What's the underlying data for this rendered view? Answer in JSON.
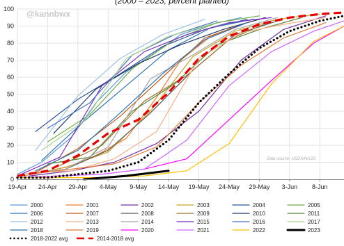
{
  "chart_data": {
    "type": "line",
    "title": "",
    "subtitle": "(2000 – 2023, percent planted)",
    "watermark": "@kannbwx",
    "source": "Data source: USDA/NASS",
    "xlabel": "",
    "ylabel": "",
    "x_ticks": [
      "19-Apr",
      "24-Apr",
      "29-Apr",
      "4-May",
      "9-May",
      "14-May",
      "19-May",
      "24-May",
      "29-May",
      "3-Jun",
      "8-Jun"
    ],
    "y_ticks": [
      "0",
      "10",
      "20",
      "30",
      "40",
      "50",
      "60",
      "70",
      "80",
      "90",
      "100"
    ],
    "xlim": [
      "19-Apr",
      "12-Jun"
    ],
    "ylim": [
      0,
      100
    ],
    "grid": true,
    "legend_position": "bottom",
    "series": [
      {
        "name": "2000",
        "color": "#5b9bd5",
        "style": "solid",
        "points": [
          [
            "19-Apr",
            3
          ],
          [
            "23-Apr",
            10
          ],
          [
            "28-Apr",
            25
          ],
          [
            "2-May",
            45
          ],
          [
            "7-May",
            63
          ],
          [
            "12-May",
            75
          ],
          [
            "16-May",
            85
          ],
          [
            "21-May",
            91
          ],
          [
            "26-May",
            95
          ]
        ]
      },
      {
        "name": "2001",
        "color": "#ed7d31",
        "style": "solid",
        "points": [
          [
            "23-Apr",
            4
          ],
          [
            "28-Apr",
            8
          ],
          [
            "2-May",
            14
          ],
          [
            "7-May",
            24
          ],
          [
            "12-May",
            48
          ],
          [
            "16-May",
            70
          ],
          [
            "21-May",
            84
          ],
          [
            "26-May",
            91
          ],
          [
            "30-May",
            95
          ]
        ]
      },
      {
        "name": "2002",
        "color": "#7030a0",
        "style": "solid",
        "points": [
          [
            "21-Apr",
            2
          ],
          [
            "28-Apr",
            5
          ],
          [
            "5-May",
            10
          ],
          [
            "12-May",
            21
          ],
          [
            "19-May",
            40
          ],
          [
            "26-May",
            70
          ],
          [
            "2-Jun",
            88
          ],
          [
            "9-Jun",
            96
          ]
        ]
      },
      {
        "name": "2003",
        "color": "#c9a227",
        "style": "solid",
        "points": [
          [
            "20-Apr",
            2
          ],
          [
            "27-Apr",
            7
          ],
          [
            "4-May",
            16
          ],
          [
            "11-May",
            40
          ],
          [
            "18-May",
            72
          ],
          [
            "25-May",
            87
          ],
          [
            "1-Jun",
            94
          ],
          [
            "8-Jun",
            97
          ]
        ]
      },
      {
        "name": "2004",
        "color": "#2e5597",
        "style": "solid",
        "points": [
          [
            "22-Apr",
            28
          ],
          [
            "29-Apr",
            47
          ],
          [
            "6-May",
            62
          ],
          [
            "13-May",
            78
          ],
          [
            "20-May",
            88
          ],
          [
            "27-May",
            94
          ]
        ]
      },
      {
        "name": "2005",
        "color": "#70ad47",
        "style": "solid",
        "points": [
          [
            "24-Apr",
            22
          ],
          [
            "1-May",
            38
          ],
          [
            "8-May",
            65
          ],
          [
            "15-May",
            82
          ],
          [
            "22-May",
            92
          ],
          [
            "29-May",
            96
          ]
        ]
      },
      {
        "name": "2006",
        "color": "#2f75b5",
        "style": "solid",
        "points": [
          [
            "23-Apr",
            11
          ],
          [
            "30-Apr",
            34
          ],
          [
            "7-May",
            55
          ],
          [
            "14-May",
            76
          ],
          [
            "21-May",
            89
          ],
          [
            "28-May",
            94
          ]
        ]
      },
      {
        "name": "2007",
        "color": "#c55a11",
        "style": "solid",
        "points": [
          [
            "22-Apr",
            4
          ],
          [
            "29-Apr",
            18
          ],
          [
            "6-May",
            37
          ],
          [
            "13-May",
            60
          ],
          [
            "20-May",
            83
          ],
          [
            "27-May",
            92
          ]
        ]
      },
      {
        "name": "2008",
        "color": "#595959",
        "style": "solid",
        "points": [
          [
            "27-Apr",
            6
          ],
          [
            "4-May",
            17
          ],
          [
            "11-May",
            39
          ],
          [
            "18-May",
            64
          ],
          [
            "25-May",
            85
          ],
          [
            "1-Jun",
            93
          ]
        ]
      },
      {
        "name": "2009",
        "color": "#a0722c",
        "style": "solid",
        "points": [
          [
            "26-Apr",
            8
          ],
          [
            "3-May",
            20
          ],
          [
            "10-May",
            46
          ],
          [
            "17-May",
            61
          ],
          [
            "24-May",
            82
          ],
          [
            "31-May",
            93
          ]
        ]
      },
      {
        "name": "2010",
        "color": "#1f3864",
        "style": "solid",
        "points": [
          [
            "25-Apr",
            27
          ],
          [
            "2-May",
            53
          ],
          [
            "9-May",
            68
          ],
          [
            "16-May",
            79
          ],
          [
            "23-May",
            88
          ],
          [
            "30-May",
            95
          ]
        ]
      },
      {
        "name": "2011",
        "color": "#548235",
        "style": "solid",
        "points": [
          [
            "24-Apr",
            9
          ],
          [
            "1-May",
            13
          ],
          [
            "8-May",
            40
          ],
          [
            "15-May",
            56
          ],
          [
            "22-May",
            79
          ],
          [
            "29-May",
            88
          ],
          [
            "5-Jun",
            95
          ]
        ]
      },
      {
        "name": "2012",
        "color": "#9dc3e6",
        "style": "solid",
        "points": [
          [
            "22-Apr",
            17
          ],
          [
            "29-Apr",
            49
          ],
          [
            "6-May",
            71
          ],
          [
            "13-May",
            85
          ],
          [
            "20-May",
            94
          ]
        ]
      },
      {
        "name": "2013",
        "color": "#f4b183",
        "style": "solid",
        "points": [
          [
            "21-Apr",
            4
          ],
          [
            "28-Apr",
            5
          ],
          [
            "5-May",
            12
          ],
          [
            "12-May",
            28
          ],
          [
            "19-May",
            71
          ],
          [
            "26-May",
            86
          ],
          [
            "2-Jun",
            91
          ],
          [
            "9-Jun",
            95
          ]
        ]
      },
      {
        "name": "2014",
        "color": "#a5a5a5",
        "style": "solid",
        "points": [
          [
            "20-Apr",
            3
          ],
          [
            "27-Apr",
            6
          ],
          [
            "4-May",
            19
          ],
          [
            "11-May",
            59
          ],
          [
            "18-May",
            73
          ],
          [
            "25-May",
            88
          ],
          [
            "1-Jun",
            95
          ]
        ]
      },
      {
        "name": "2015",
        "color": "#7b2fbe",
        "style": "solid",
        "points": [
          [
            "19-Apr",
            2
          ],
          [
            "26-Apr",
            13
          ],
          [
            "3-May",
            55
          ],
          [
            "10-May",
            75
          ],
          [
            "17-May",
            85
          ],
          [
            "24-May",
            92
          ],
          [
            "31-May",
            95
          ]
        ]
      },
      {
        "name": "2016",
        "color": "#4472c4",
        "style": "solid",
        "points": [
          [
            "24-Apr",
            30
          ],
          [
            "1-May",
            45
          ],
          [
            "8-May",
            73
          ],
          [
            "15-May",
            85
          ],
          [
            "22-May",
            93
          ]
        ]
      },
      {
        "name": "2017",
        "color": "#a9d18e",
        "style": "solid",
        "points": [
          [
            "23-Apr",
            17
          ],
          [
            "30-Apr",
            34
          ],
          [
            "7-May",
            71
          ],
          [
            "14-May",
            84
          ],
          [
            "21-May",
            91
          ]
        ]
      },
      {
        "name": "2018",
        "color": "#2e74b5",
        "style": "solid",
        "points": [
          [
            "22-Apr",
            5
          ],
          [
            "29-Apr",
            17
          ],
          [
            "6-May",
            39
          ],
          [
            "13-May",
            62
          ],
          [
            "20-May",
            82
          ],
          [
            "27-May",
            92
          ]
        ]
      },
      {
        "name": "2019",
        "color": "#e07b39",
        "style": "solid",
        "points": [
          [
            "21-Apr",
            3
          ],
          [
            "28-Apr",
            6
          ],
          [
            "5-May",
            9
          ],
          [
            "12-May",
            19
          ],
          [
            "19-May",
            45
          ],
          [
            "26-May",
            67
          ],
          [
            "2-Jun",
            83
          ],
          [
            "9-Jun",
            92
          ]
        ]
      },
      {
        "name": "2020",
        "color": "#ff00ff",
        "style": "solid",
        "points": [
          [
            "19-Apr",
            1
          ],
          [
            "26-Apr",
            2
          ],
          [
            "3-May",
            3
          ],
          [
            "10-May",
            6
          ],
          [
            "17-May",
            12
          ],
          [
            "24-May",
            35
          ],
          [
            "31-May",
            58
          ],
          [
            "7-Jun",
            80
          ],
          [
            "12-Jun",
            90
          ]
        ]
      },
      {
        "name": "2021",
        "color": "#cc66ff",
        "style": "solid",
        "points": [
          [
            "19-Apr",
            1
          ],
          [
            "26-Apr",
            2
          ],
          [
            "3-May",
            3
          ],
          [
            "10-May",
            6
          ],
          [
            "17-May",
            23
          ],
          [
            "24-May",
            55
          ],
          [
            "31-May",
            75
          ],
          [
            "7-Jun",
            87
          ],
          [
            "12-Jun",
            93
          ]
        ]
      },
      {
        "name": "2022",
        "color": "#ffc000",
        "style": "solid",
        "points": [
          [
            "19-Apr",
            1
          ],
          [
            "26-Apr",
            1
          ],
          [
            "3-May",
            1
          ],
          [
            "10-May",
            2
          ],
          [
            "17-May",
            5
          ],
          [
            "24-May",
            21
          ],
          [
            "31-May",
            56
          ],
          [
            "7-Jun",
            81
          ],
          [
            "12-Jun",
            90
          ]
        ]
      },
      {
        "name": "2023",
        "color": "#000000",
        "style": "solid-bold",
        "points": [
          [
            "30-Apr",
            0
          ],
          [
            "7-May",
            2
          ],
          [
            "14-May",
            5
          ]
        ]
      },
      {
        "name": "2018-2022 avg",
        "color": "#000000",
        "style": "dotted",
        "points": [
          [
            "19-Apr",
            1
          ],
          [
            "24-Apr",
            1
          ],
          [
            "29-Apr",
            3
          ],
          [
            "4-May",
            5
          ],
          [
            "9-May",
            10
          ],
          [
            "14-May",
            23
          ],
          [
            "19-May",
            45
          ],
          [
            "24-May",
            62
          ],
          [
            "29-May",
            77
          ],
          [
            "3-Jun",
            87
          ],
          [
            "8-Jun",
            93
          ],
          [
            "12-Jun",
            96
          ]
        ]
      },
      {
        "name": "2014-2018 avg",
        "color": "#e60000",
        "style": "dashed",
        "points": [
          [
            "19-Apr",
            2
          ],
          [
            "24-Apr",
            5
          ],
          [
            "29-Apr",
            14
          ],
          [
            "4-May",
            27
          ],
          [
            "9-May",
            35
          ],
          [
            "14-May",
            51
          ],
          [
            "19-May",
            71
          ],
          [
            "24-May",
            84
          ],
          [
            "29-May",
            91
          ],
          [
            "3-Jun",
            95
          ],
          [
            "8-Jun",
            97
          ],
          [
            "12-Jun",
            98
          ]
        ]
      }
    ]
  }
}
